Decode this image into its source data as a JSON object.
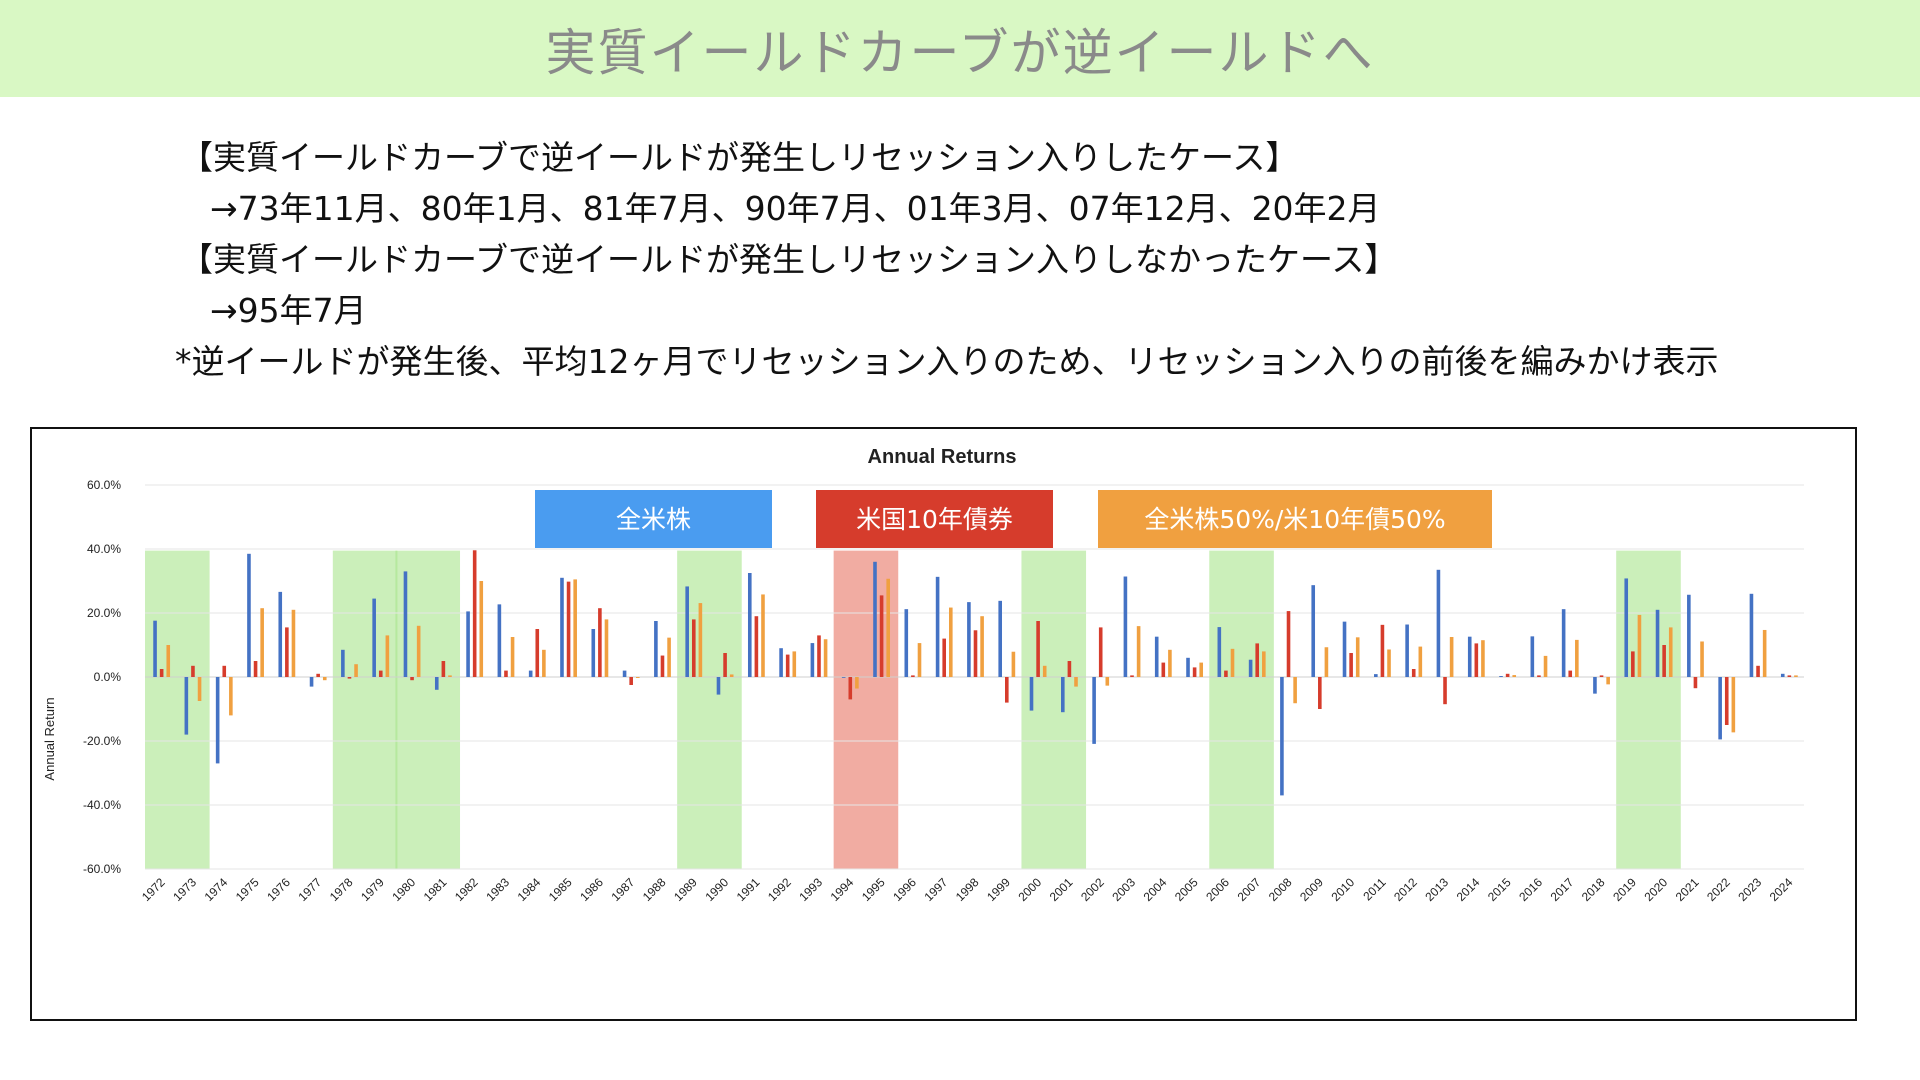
{
  "header": {
    "title": "実質イールドカーブが逆イールドへ"
  },
  "notes": {
    "line1": "【実質イールドカーブで逆イールドが発生しリセッション入りしたケース】",
    "line2": "→73年11月、80年1月、81年7月、90年7月、01年3月、07年12月、20年2月",
    "line3": "【実質イールドカーブで逆イールドが発生しリセッション入りしなかったケース】",
    "line4": "→95年7月",
    "line5": "*逆イールドが発生後、平均12ヶ月でリセッション入りのため、リセッション入りの前後を編みかけ表示"
  },
  "colors": {
    "stock": "#4472c4",
    "bond": "#d63c2c",
    "mix": "#f0a040",
    "legend_stock": "#4a9cf0",
    "legend_bond": "#d63c2c",
    "legend_mix": "#f0a040",
    "shade_green": "#a8e48c",
    "shade_red": "#ea8070"
  },
  "chart_data": {
    "type": "bar",
    "title": "Annual Returns",
    "ylabel": "Annual Return",
    "xlabel": "",
    "ylim": [
      -60,
      60
    ],
    "yticks": [
      "60.0%",
      "40.0%",
      "20.0%",
      "0.0%",
      "-20.0%",
      "-40.0%",
      "-60.0%"
    ],
    "grid": true,
    "legend_position": "top-center",
    "categories": [
      "1972",
      "1973",
      "1974",
      "1975",
      "1976",
      "1977",
      "1978",
      "1979",
      "1980",
      "1981",
      "1982",
      "1983",
      "1984",
      "1985",
      "1986",
      "1987",
      "1988",
      "1989",
      "1990",
      "1991",
      "1992",
      "1993",
      "1994",
      "1995",
      "1996",
      "1997",
      "1998",
      "1999",
      "2000",
      "2001",
      "2002",
      "2003",
      "2004",
      "2005",
      "2006",
      "2007",
      "2008",
      "2009",
      "2010",
      "2011",
      "2012",
      "2013",
      "2014",
      "2015",
      "2016",
      "2017",
      "2018",
      "2019",
      "2020",
      "2021",
      "2022",
      "2023",
      "2024"
    ],
    "series": [
      {
        "name": "全米株",
        "values": [
          17.6,
          -18.0,
          -27.0,
          38.5,
          26.6,
          -3.0,
          8.5,
          24.5,
          33.0,
          -4.0,
          20.5,
          22.7,
          2.0,
          31.0,
          15.0,
          2.0,
          17.5,
          28.3,
          -5.5,
          32.5,
          9.0,
          10.6,
          -0.2,
          36.0,
          21.2,
          31.3,
          23.4,
          23.8,
          -10.5,
          -11.0,
          -20.9,
          31.4,
          12.6,
          6.0,
          15.6,
          5.4,
          -37.0,
          28.7,
          17.3,
          0.9,
          16.4,
          33.5,
          12.6,
          0.3,
          12.7,
          21.2,
          -5.2,
          30.8,
          21.0,
          25.7,
          -19.5,
          26.0,
          1.0
        ]
      },
      {
        "name": "米国10年債券",
        "values": [
          2.5,
          3.5,
          3.5,
          5.0,
          15.5,
          1.0,
          -0.5,
          2.0,
          -1.0,
          5.0,
          39.6,
          2.0,
          15.0,
          29.8,
          21.5,
          -2.5,
          6.7,
          18.0,
          7.5,
          19.0,
          7.0,
          13.0,
          -7.0,
          25.5,
          0.5,
          12.0,
          14.6,
          -8.0,
          17.5,
          5.0,
          15.5,
          0.5,
          4.5,
          3.0,
          2.0,
          10.5,
          20.6,
          -10.0,
          7.5,
          16.3,
          2.5,
          -8.5,
          10.5,
          1.0,
          0.5,
          2.0,
          0.5,
          8.0,
          10.0,
          -3.5,
          -15.0,
          3.5,
          0.5
        ]
      },
      {
        "name": "全米株50%/米10年債50%",
        "values": [
          10.0,
          -7.5,
          -12.0,
          21.5,
          21.0,
          -1.0,
          4.0,
          13.0,
          16.0,
          0.5,
          30.0,
          12.5,
          8.5,
          30.5,
          18.0,
          -0.3,
          12.3,
          23.1,
          0.8,
          25.8,
          8.0,
          11.8,
          -3.6,
          30.7,
          10.6,
          21.7,
          19.0,
          7.9,
          3.5,
          -3.0,
          -2.7,
          15.9,
          8.5,
          4.5,
          8.8,
          8.0,
          -8.2,
          9.3,
          12.4,
          8.6,
          9.5,
          12.5,
          11.5,
          0.6,
          6.6,
          11.6,
          -2.3,
          19.4,
          15.5,
          11.1,
          -17.3,
          14.7,
          0.5
        ]
      }
    ],
    "shaded_ranges": [
      {
        "from": "1972",
        "to": "1973",
        "type": "recession"
      },
      {
        "from": "1978",
        "to": "1979",
        "type": "recession"
      },
      {
        "from": "1980",
        "to": "1981",
        "type": "recession"
      },
      {
        "from": "1989",
        "to": "1990",
        "type": "recession"
      },
      {
        "from": "1994",
        "to": "1995",
        "type": "no-recession"
      },
      {
        "from": "2000",
        "to": "2001",
        "type": "recession"
      },
      {
        "from": "2006",
        "to": "2007",
        "type": "recession"
      },
      {
        "from": "2019",
        "to": "2020",
        "type": "recession"
      }
    ]
  }
}
